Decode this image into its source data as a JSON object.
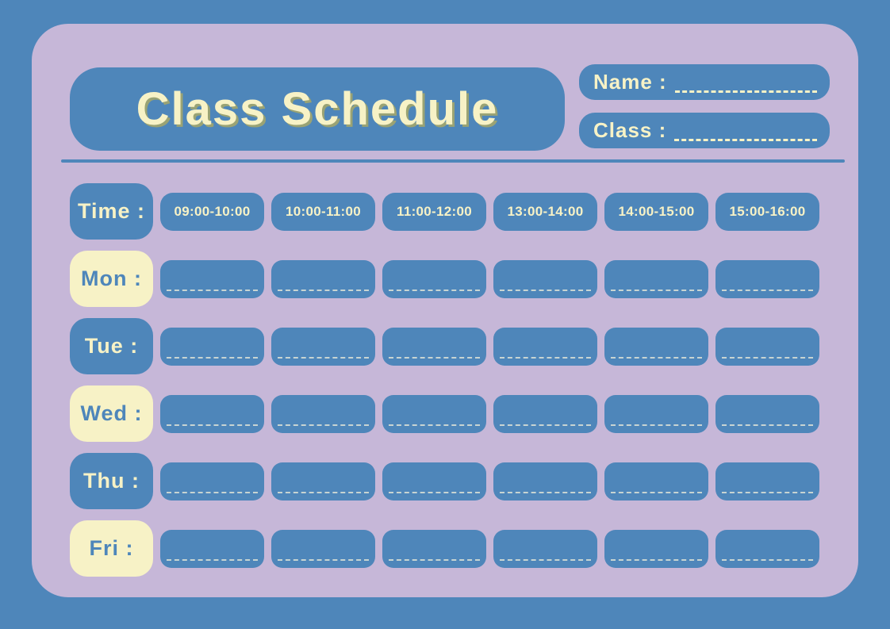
{
  "title": "Class Schedule",
  "header_fields": {
    "name_label": "Name :",
    "class_label": "Class :"
  },
  "schedule": {
    "time_label": "Time :",
    "time_slots": [
      "09:00-10:00",
      "10:00-11:00",
      "11:00-12:00",
      "13:00-14:00",
      "14:00-15:00",
      "15:00-16:00"
    ],
    "days": [
      {
        "label": "Mon :"
      },
      {
        "label": "Tue :"
      },
      {
        "label": "Wed :"
      },
      {
        "label": "Thu :"
      },
      {
        "label": "Fri :"
      }
    ]
  },
  "colors": {
    "background_blue": "#4e86ba",
    "card_lavender": "#c6b7d8",
    "accent_cream": "#f7f2c6",
    "title_shadow_olive": "#9aa374"
  }
}
